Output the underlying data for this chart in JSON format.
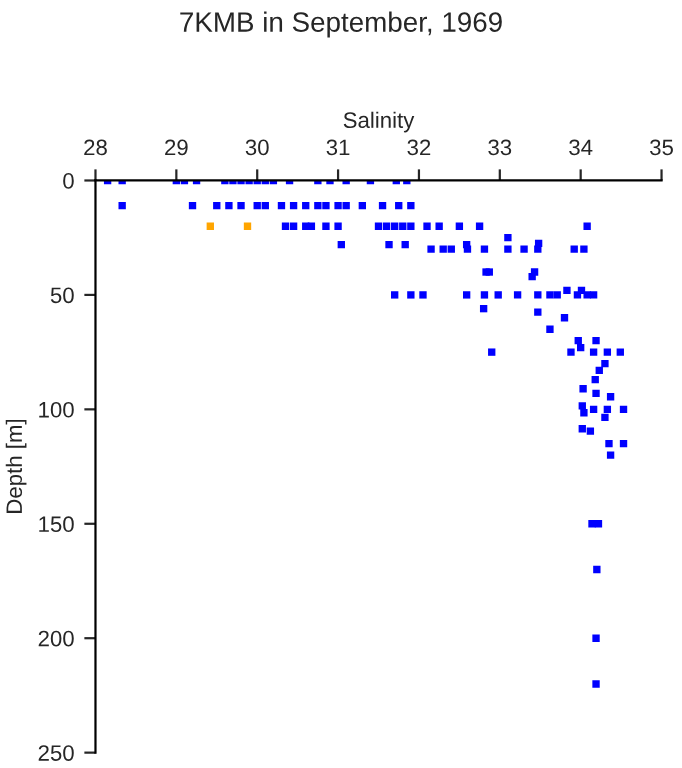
{
  "chart_data": {
    "type": "scatter",
    "title": "7KMB in September, 1969",
    "xlabel": "Salinity",
    "ylabel": "Depth [m]",
    "xlim": [
      28,
      35
    ],
    "xticks": [
      28,
      29,
      30,
      31,
      32,
      33,
      34,
      35
    ],
    "ylim": [
      250,
      0
    ],
    "yticks": [
      0,
      50,
      100,
      150,
      200,
      250
    ],
    "marker": "square",
    "grid": false,
    "legend": false,
    "series": [
      {
        "color": "#0000ff",
        "x": [
          28.15,
          28.33,
          29.0,
          29.1,
          29.25,
          29.6,
          29.7,
          29.8,
          29.9,
          30.0,
          30.1,
          30.2,
          30.4,
          30.75,
          30.9,
          31.1,
          31.4,
          31.72,
          31.85,
          28.33,
          29.2,
          29.5,
          29.65,
          29.8,
          30.0,
          30.1,
          30.3,
          30.45,
          30.6,
          30.75,
          30.85,
          31.0,
          31.1,
          31.3,
          31.55,
          31.75,
          31.9,
          30.35,
          30.45,
          30.6,
          30.67,
          30.85,
          31.0,
          31.5,
          31.6,
          31.7,
          31.8,
          31.9,
          32.1,
          32.25,
          32.5,
          32.75,
          34.08,
          31.04,
          31.63,
          31.83,
          32.15,
          32.3,
          32.4,
          32.6,
          32.81,
          33.1,
          33.3,
          33.47,
          33.92,
          34.04,
          32.59,
          33.48,
          33.1,
          32.83,
          33.4,
          32.87,
          33.43,
          31.7,
          31.9,
          32.05,
          32.59,
          32.81,
          32.98,
          33.22,
          33.47,
          33.62,
          33.71,
          33.96,
          34.08,
          34.16,
          33.83,
          34.01,
          32.8,
          33.47,
          33.62,
          33.8,
          33.97,
          34.19,
          34.0,
          33.88,
          34.16,
          34.33,
          34.49,
          32.9,
          34.3,
          34.23,
          34.18,
          34.03,
          34.19,
          34.37,
          34.02,
          34.04,
          34.16,
          34.33,
          34.53,
          34.3,
          34.02,
          34.12,
          34.35,
          34.53,
          34.37,
          34.14,
          34.22,
          34.2,
          34.19,
          34.19
        ],
        "values": [
          0,
          0,
          0,
          0,
          0,
          0,
          0,
          0,
          0,
          0,
          0,
          0,
          0,
          0,
          0,
          0,
          0,
          0,
          0,
          11,
          11,
          11,
          11,
          11,
          11,
          11,
          11,
          11,
          11,
          11,
          11,
          11,
          11,
          11,
          11,
          11,
          11,
          20,
          20,
          20,
          20,
          20,
          20,
          20,
          20,
          20,
          20,
          20,
          20,
          20,
          20,
          20,
          20,
          28,
          28,
          28,
          30,
          30,
          30,
          30,
          30,
          30,
          30,
          30,
          30,
          30,
          28,
          27.5,
          25,
          40,
          42,
          40,
          40,
          50,
          50,
          50,
          50,
          50,
          50,
          50,
          50,
          50,
          50,
          50,
          50,
          50,
          48,
          48,
          56,
          57.5,
          65,
          60,
          70,
          70,
          73,
          75,
          75,
          75,
          75,
          75,
          80,
          83,
          87,
          91,
          93,
          94.5,
          98.5,
          101.5,
          100,
          100,
          100,
          103.5,
          108.5,
          109.5,
          115,
          115,
          120,
          150,
          150,
          170,
          200,
          220
        ]
      },
      {
        "color": "#ffa500",
        "x": [
          29.42,
          29.88
        ],
        "values": [
          20,
          20
        ]
      }
    ]
  }
}
